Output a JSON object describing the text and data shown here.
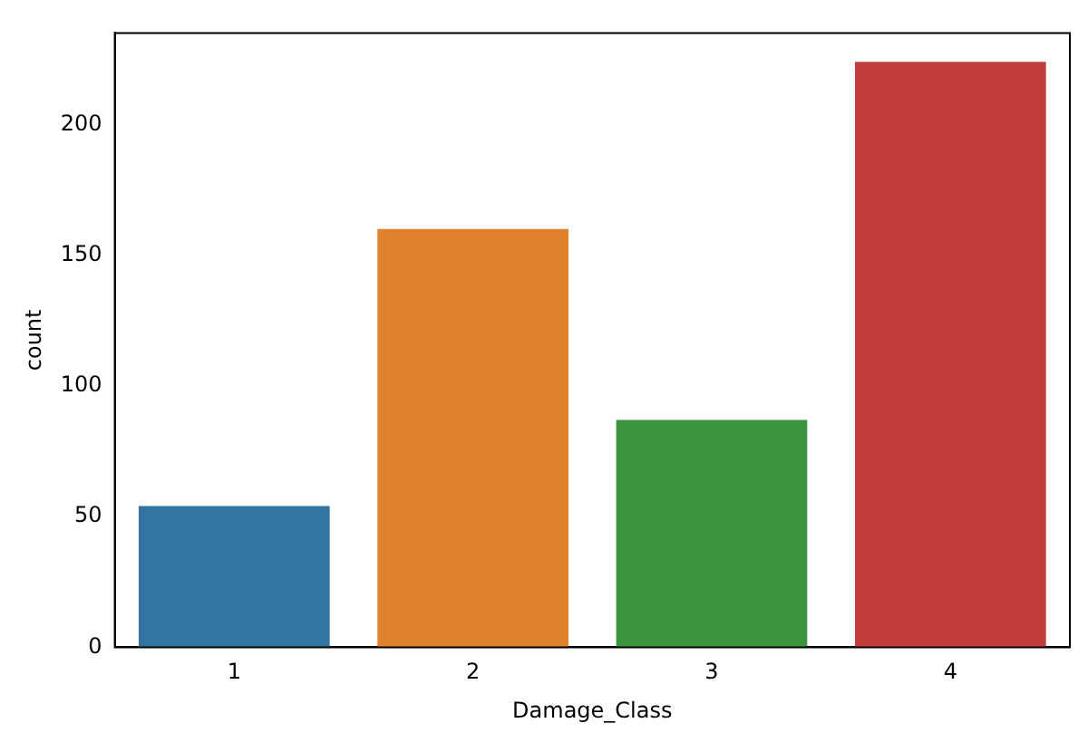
{
  "chart_data": {
    "type": "bar",
    "xlabel": "Damage_Class",
    "ylabel": "count",
    "categories": [
      "1",
      "2",
      "3",
      "4"
    ],
    "values": [
      54,
      160,
      87,
      224
    ],
    "colors": [
      "#3274a1",
      "#e1812c",
      "#3a923a",
      "#c03d3e"
    ],
    "ylim": [
      0,
      235
    ],
    "yticks": [
      0,
      50,
      100,
      150,
      200
    ],
    "grid": false,
    "legend": false
  }
}
